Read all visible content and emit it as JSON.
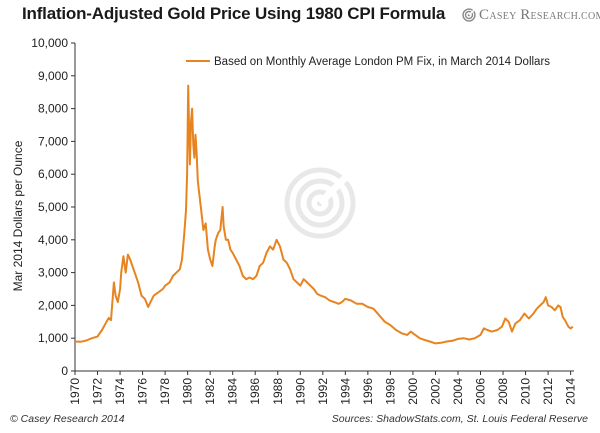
{
  "chart_data": {
    "type": "line",
    "title": "Inflation-Adjusted Gold Price Using 1980 CPI Formula",
    "ylabel": "Mar 2014 Dollars per Ounce",
    "xlabel": "",
    "ylim": [
      0,
      10000
    ],
    "xlim": [
      1970,
      2014.3
    ],
    "y_ticks": [
      "0",
      "1,000",
      "2,000",
      "3,000",
      "4,000",
      "5,000",
      "6,000",
      "7,000",
      "8,000",
      "9,000",
      "10,000"
    ],
    "x_ticks": [
      "1970",
      "1972",
      "1974",
      "1976",
      "1978",
      "1980",
      "1982",
      "1984",
      "1986",
      "1988",
      "1990",
      "1992",
      "1994",
      "1996",
      "1998",
      "2000",
      "2002",
      "2004",
      "2006",
      "2008",
      "2010",
      "2012",
      "2014"
    ],
    "grid": false,
    "legend_position": "top-right",
    "series": [
      {
        "name": "Based on Monthly Average London PM Fix, in March 2014 Dollars",
        "color": "#e8841f",
        "x": [
          1970.0,
          1970.5,
          1971.0,
          1971.5,
          1972.0,
          1972.4,
          1972.8,
          1973.0,
          1973.2,
          1973.45,
          1973.6,
          1973.8,
          1974.0,
          1974.1,
          1974.3,
          1974.5,
          1974.7,
          1974.9,
          1975.1,
          1975.3,
          1975.6,
          1975.9,
          1976.2,
          1976.5,
          1976.7,
          1977.0,
          1977.4,
          1977.8,
          1978.0,
          1978.4,
          1978.7,
          1979.0,
          1979.3,
          1979.5,
          1979.7,
          1979.85,
          1979.95,
          1980.05,
          1980.12,
          1980.2,
          1980.3,
          1980.4,
          1980.5,
          1980.6,
          1980.7,
          1980.8,
          1980.9,
          1981.0,
          1981.2,
          1981.4,
          1981.6,
          1981.8,
          1982.0,
          1982.2,
          1982.4,
          1982.5,
          1982.7,
          1982.9,
          1983.1,
          1983.2,
          1983.4,
          1983.6,
          1983.8,
          1984.0,
          1984.3,
          1984.6,
          1984.9,
          1985.2,
          1985.5,
          1985.8,
          1986.1,
          1986.4,
          1986.7,
          1987.0,
          1987.3,
          1987.6,
          1987.9,
          1988.2,
          1988.5,
          1988.8,
          1989.1,
          1989.4,
          1989.7,
          1990.0,
          1990.3,
          1990.6,
          1990.9,
          1991.2,
          1991.5,
          1991.8,
          1992.2,
          1992.6,
          1993.0,
          1993.4,
          1993.7,
          1994.0,
          1994.5,
          1995.0,
          1995.5,
          1996.0,
          1996.5,
          1997.0,
          1997.5,
          1998.0,
          1998.5,
          1999.0,
          1999.5,
          1999.8,
          2000.2,
          2000.6,
          2001.0,
          2001.5,
          2002.0,
          2002.5,
          2003.0,
          2003.5,
          2004.0,
          2004.5,
          2005.0,
          2005.5,
          2006.0,
          2006.3,
          2006.6,
          2007.0,
          2007.5,
          2007.9,
          2008.2,
          2008.5,
          2008.8,
          2009.1,
          2009.5,
          2009.9,
          2010.3,
          2010.7,
          2011.0,
          2011.3,
          2011.6,
          2011.8,
          2012.0,
          2012.3,
          2012.6,
          2012.9,
          2013.1,
          2013.3,
          2013.5,
          2013.8,
          2014.0,
          2014.2
        ],
        "values": [
          900,
          890,
          930,
          1000,
          1050,
          1250,
          1500,
          1620,
          1550,
          2700,
          2300,
          2100,
          2500,
          3000,
          3500,
          3000,
          3550,
          3400,
          3200,
          3000,
          2700,
          2300,
          2200,
          1950,
          2100,
          2300,
          2400,
          2500,
          2600,
          2700,
          2900,
          3000,
          3100,
          3400,
          4200,
          4900,
          6000,
          8700,
          7500,
          6300,
          7600,
          8000,
          6900,
          6500,
          7200,
          6600,
          5800,
          5500,
          4900,
          4300,
          4500,
          3700,
          3400,
          3200,
          3800,
          4000,
          4200,
          4300,
          5000,
          4400,
          4000,
          4000,
          3700,
          3600,
          3400,
          3200,
          2900,
          2800,
          2850,
          2800,
          2900,
          3200,
          3300,
          3600,
          3800,
          3700,
          4000,
          3800,
          3400,
          3300,
          3100,
          2800,
          2700,
          2600,
          2800,
          2700,
          2600,
          2500,
          2350,
          2300,
          2250,
          2150,
          2100,
          2050,
          2100,
          2200,
          2150,
          2050,
          2050,
          1950,
          1900,
          1700,
          1500,
          1400,
          1250,
          1150,
          1100,
          1200,
          1100,
          1000,
          950,
          900,
          840,
          860,
          900,
          920,
          980,
          1000,
          960,
          1000,
          1100,
          1300,
          1250,
          1200,
          1250,
          1350,
          1600,
          1500,
          1200,
          1450,
          1550,
          1750,
          1600,
          1750,
          1900,
          2000,
          2100,
          2250,
          2000,
          1950,
          1850,
          2000,
          1950,
          1650,
          1550,
          1350,
          1300,
          1350
        ]
      }
    ]
  },
  "footer": {
    "copyright": "© Casey Research 2014",
    "sources": "Sources: ShadowStats.com, St. Louis Federal Reserve"
  },
  "logo": {
    "text_c": "C",
    "text_asey": "ASEY",
    "text_r": "R",
    "text_esearch": "ESEARCH",
    "text_com": ".COM",
    "icon": "spiral-target-icon"
  }
}
